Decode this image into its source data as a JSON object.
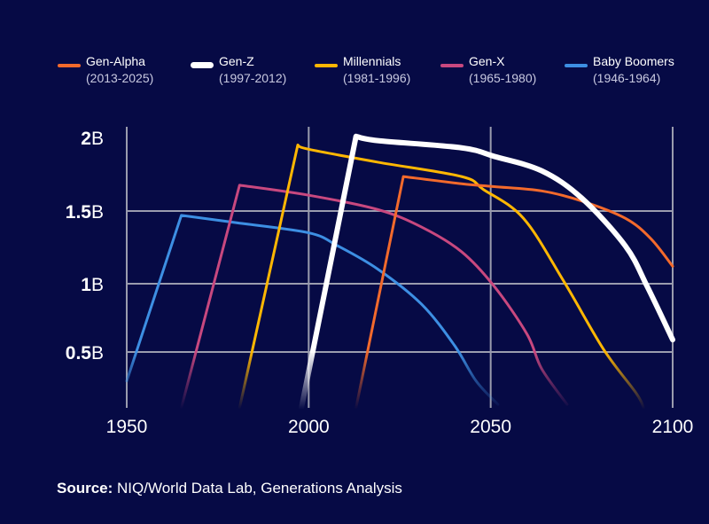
{
  "chart_data": {
    "type": "line",
    "title": "",
    "xlabel": "",
    "ylabel": "",
    "xlim": [
      1950,
      2100
    ],
    "ylim": [
      0,
      2
    ],
    "x_ticks": [
      "1950",
      "2000",
      "2050",
      "2100"
    ],
    "x_tick_values": [
      1950,
      2000,
      2050,
      2100
    ],
    "y_ticks": [
      {
        "value": 2,
        "num": "2",
        "unit": "B"
      },
      {
        "value": 1.5,
        "num": "1.5",
        "unit": "B"
      },
      {
        "value": 1,
        "num": "1",
        "unit": "B"
      },
      {
        "value": 0.5,
        "num": "0.5",
        "unit": "B"
      }
    ],
    "grid": true,
    "legend_position": "top",
    "series": [
      {
        "name": "Gen-Alpha",
        "years": "(2013-2025)",
        "color": "#f36a2c",
        "width": 3,
        "points": [
          [
            2013,
            0
          ],
          [
            2026,
            1.74
          ],
          [
            2042,
            1.69
          ],
          [
            2051,
            1.67
          ],
          [
            2064,
            1.64
          ],
          [
            2075,
            1.57
          ],
          [
            2087,
            1.45
          ],
          [
            2094,
            1.31
          ],
          [
            2100,
            1.12
          ]
        ]
      },
      {
        "name": "Gen-Z",
        "years": "(1997-2012)",
        "color": "#ffffff",
        "width": 6,
        "points": [
          [
            1998,
            0
          ],
          [
            2013,
            2.02
          ],
          [
            2019,
            1.99
          ],
          [
            2042,
            1.94
          ],
          [
            2051,
            1.88
          ],
          [
            2064,
            1.78
          ],
          [
            2075,
            1.59
          ],
          [
            2087,
            1.26
          ],
          [
            2093,
            0.98
          ],
          [
            2100,
            0.59
          ]
        ]
      },
      {
        "name": "Millennials",
        "years": "(1981-1996)",
        "color": "#ffb703",
        "width": 3,
        "points": [
          [
            1981,
            0
          ],
          [
            1997,
            1.96
          ],
          [
            2000,
            1.93
          ],
          [
            2019,
            1.84
          ],
          [
            2042,
            1.74
          ],
          [
            2048,
            1.65
          ],
          [
            2059,
            1.45
          ],
          [
            2070,
            1.02
          ],
          [
            2081,
            0.52
          ],
          [
            2090,
            0.13
          ],
          [
            2092,
            0
          ]
        ]
      },
      {
        "name": "Gen-X",
        "years": "(1965-1980)",
        "color": "#c8487f",
        "width": 3,
        "points": [
          [
            1965,
            0
          ],
          [
            1981,
            1.68
          ],
          [
            2000,
            1.61
          ],
          [
            2019,
            1.51
          ],
          [
            2031,
            1.39
          ],
          [
            2042,
            1.22
          ],
          [
            2051,
            0.98
          ],
          [
            2060,
            0.63
          ],
          [
            2064,
            0.35
          ],
          [
            2071,
            0.03
          ]
        ]
      },
      {
        "name": "Baby Boomers",
        "years": "(1946-1964)",
        "color": "#3d8fe3",
        "width": 3,
        "points": [
          [
            1950,
            0.24
          ],
          [
            1965,
            1.47
          ],
          [
            1980,
            1.42
          ],
          [
            2000,
            1.35
          ],
          [
            2008,
            1.26
          ],
          [
            2019,
            1.1
          ],
          [
            2031,
            0.85
          ],
          [
            2040,
            0.55
          ],
          [
            2046,
            0.24
          ],
          [
            2052,
            0.03
          ]
        ]
      }
    ]
  },
  "colors": {
    "background": "#060a45",
    "grid": "#9a9cae"
  },
  "source": {
    "label": "Source:",
    "text": " NIQ/World Data Lab, Generations Analysis"
  }
}
